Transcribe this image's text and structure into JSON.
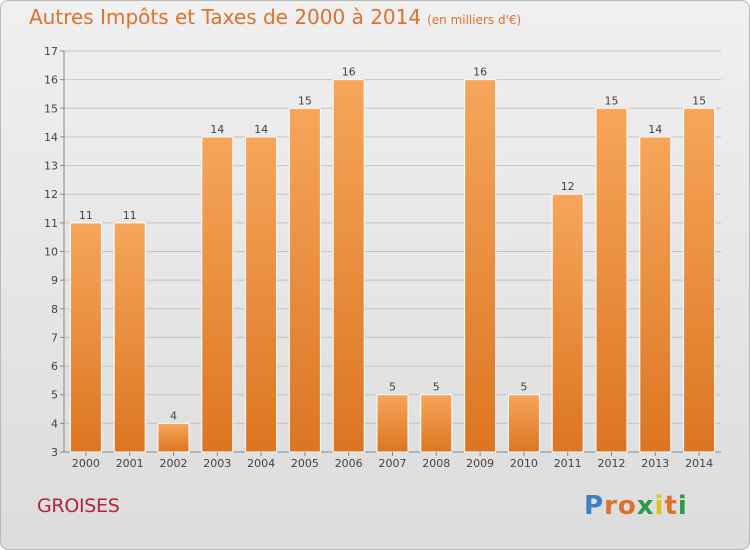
{
  "title": "Autres Impôts et Taxes de 2000 à 2014",
  "subtitle": "(en milliers d'€)",
  "place": "GROISES",
  "logo": {
    "letters": [
      "P",
      "r",
      "o",
      "x",
      "i",
      "t",
      "i"
    ],
    "colors": [
      "#3b82c4",
      "#e0712b",
      "#e0712b",
      "#2e9a45",
      "#e0c21e",
      "#e0712b",
      "#2e9a45"
    ]
  },
  "colors": {
    "bar_top": "#f6a65a",
    "bar_bottom": "#dc7522",
    "bar_edge": "#ffffff",
    "grid": "#c4c4c4",
    "title": "#e0712b",
    "place": "#b2243c"
  },
  "chart_data": {
    "type": "bar",
    "categories": [
      "2000",
      "2001",
      "2002",
      "2003",
      "2004",
      "2005",
      "2006",
      "2007",
      "2008",
      "2009",
      "2010",
      "2011",
      "2012",
      "2013",
      "2014"
    ],
    "values": [
      11,
      11,
      4,
      14,
      14,
      15,
      16,
      5,
      5,
      16,
      5,
      12,
      15,
      14,
      15
    ],
    "ylim": [
      3,
      17
    ],
    "yticks": [
      3,
      4,
      5,
      6,
      7,
      8,
      9,
      10,
      11,
      12,
      13,
      14,
      15,
      16,
      17
    ],
    "grid": true,
    "data_labels": true
  }
}
